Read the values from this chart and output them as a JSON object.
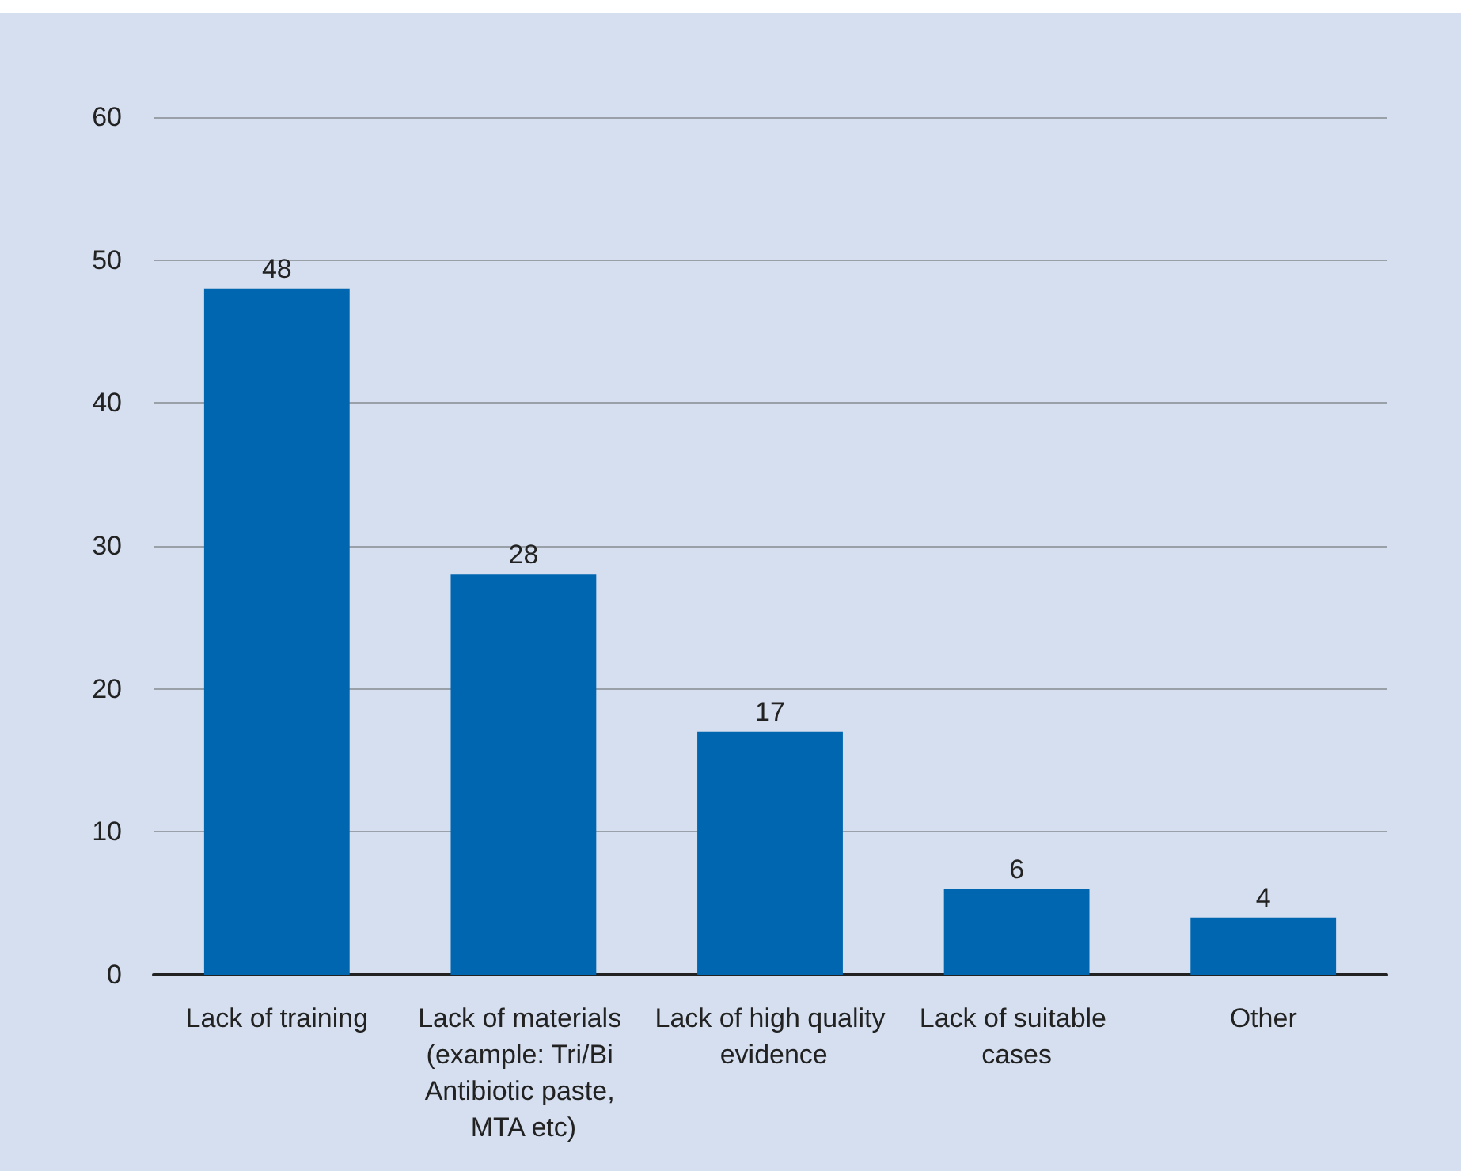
{
  "chart_data": {
    "type": "bar",
    "categories": [
      "Lack of training",
      "Lack of materials (example: Tri/Bi Antibiotic paste, MTA etc)",
      "Lack of high quality evidence",
      "Lack of suitable cases",
      "Other"
    ],
    "values": [
      48,
      28,
      17,
      6,
      4
    ],
    "color": "#0066b0",
    "ylim": [
      0,
      60
    ],
    "yticks": [
      0,
      10,
      20,
      30,
      40,
      50,
      60
    ],
    "grid": "y",
    "data_labels": true
  }
}
